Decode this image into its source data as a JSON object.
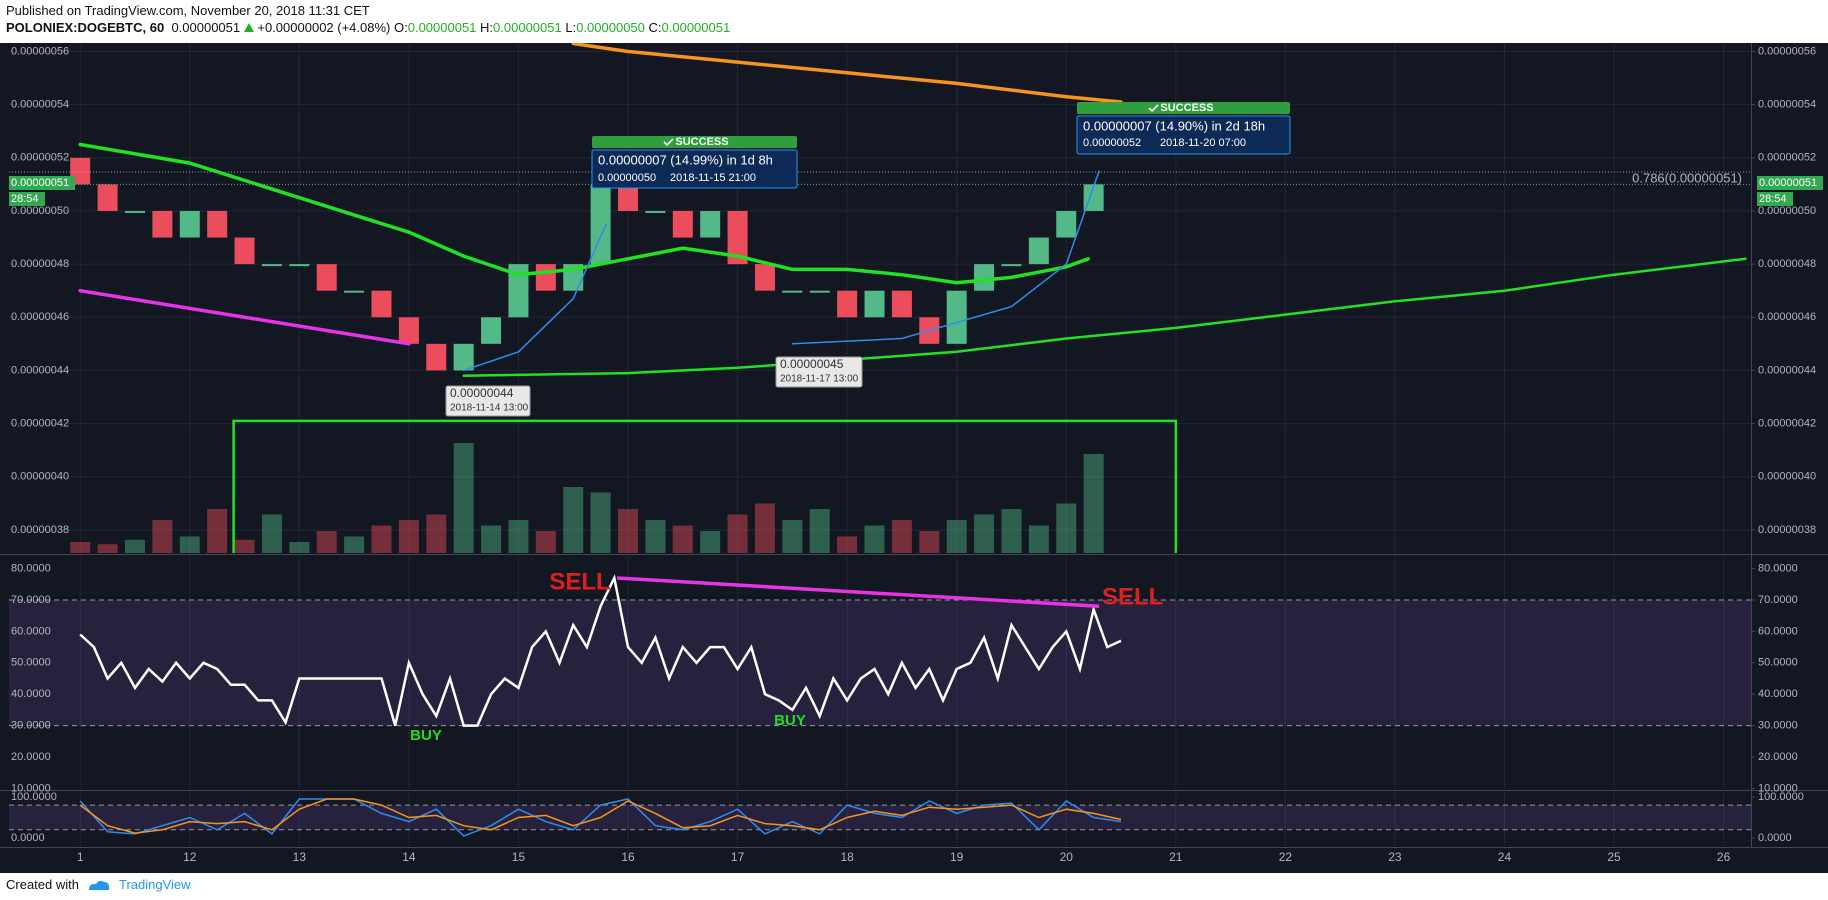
{
  "header": {
    "published": "Published on TradingView.com, November 20, 2018 11:31 CET",
    "symbol": "POLONIEX:DOGEBTC, 60",
    "last": "0.00000051",
    "change": "+0.00000002 (+4.08%)",
    "o_label": "O:",
    "o": "0.00000051",
    "h_label": "H:",
    "h": "0.00000051",
    "l_label": "L:",
    "l": "0.00000050",
    "c_label": "C:",
    "c": "0.00000051"
  },
  "footer": {
    "created": "Created with",
    "brand": "TradingView"
  },
  "chart_data": [
    {
      "type": "candlestick",
      "x": [
        11,
        11.25,
        11.5,
        11.75,
        12,
        12.25,
        12.5,
        12.75,
        13,
        13.25,
        13.5,
        13.75,
        14,
        14.25,
        14.5,
        14.75,
        15,
        15.25,
        15.5,
        15.75,
        16,
        16.25,
        16.5,
        16.75,
        17,
        17.25,
        17.5,
        17.75,
        18,
        18.25,
        18.5,
        18.75,
        19,
        19.25,
        19.5,
        19.75,
        20,
        20.25
      ],
      "open": [
        5.2e-07,
        5.1e-07,
        5e-07,
        5e-07,
        4.9e-07,
        5e-07,
        4.9e-07,
        4.8e-07,
        4.8e-07,
        4.8e-07,
        4.7e-07,
        4.7e-07,
        4.6e-07,
        4.5e-07,
        4.4e-07,
        4.5e-07,
        4.6e-07,
        4.8e-07,
        4.7e-07,
        4.8e-07,
        5.1e-07,
        5e-07,
        5e-07,
        4.9e-07,
        5e-07,
        4.8e-07,
        4.7e-07,
        4.7e-07,
        4.7e-07,
        4.6e-07,
        4.7e-07,
        4.6e-07,
        4.5e-07,
        4.7e-07,
        4.8e-07,
        4.8e-07,
        4.9e-07,
        5e-07
      ],
      "close": [
        5.1e-07,
        5e-07,
        5e-07,
        4.9e-07,
        5e-07,
        4.9e-07,
        4.8e-07,
        4.8e-07,
        4.8e-07,
        4.7e-07,
        4.7e-07,
        4.6e-07,
        4.5e-07,
        4.4e-07,
        4.5e-07,
        4.6e-07,
        4.8e-07,
        4.7e-07,
        4.8e-07,
        5.1e-07,
        5e-07,
        5e-07,
        4.9e-07,
        5e-07,
        4.8e-07,
        4.7e-07,
        4.7e-07,
        4.7e-07,
        4.6e-07,
        4.7e-07,
        4.6e-07,
        4.5e-07,
        4.7e-07,
        4.8e-07,
        4.8e-07,
        4.9e-07,
        5e-07,
        5.1e-07
      ],
      "volume": [
        10,
        8,
        12,
        30,
        15,
        40,
        12,
        35,
        10,
        20,
        15,
        25,
        30,
        35,
        100,
        25,
        30,
        20,
        60,
        55,
        40,
        30,
        25,
        20,
        35,
        45,
        30,
        40,
        15,
        25,
        30,
        20,
        30,
        35,
        40,
        25,
        45,
        90
      ],
      "up_color": "#53b987",
      "down_color": "#eb4d5c",
      "lines": [
        {
          "color": "#22e022",
          "width": 3.5,
          "x": [
            11,
            12,
            13,
            14,
            14.5,
            15,
            15.5,
            16,
            16.5,
            17,
            17.5,
            18,
            18.5,
            19,
            19.5,
            20,
            20.2
          ],
          "values": [
            5.25e-07,
            5.18e-07,
            5.05e-07,
            4.92e-07,
            4.83e-07,
            4.76e-07,
            4.78e-07,
            4.82e-07,
            4.86e-07,
            4.83e-07,
            4.78e-07,
            4.78e-07,
            4.76e-07,
            4.73e-07,
            4.75e-07,
            4.79e-07,
            4.82e-07
          ]
        },
        {
          "color": "#f7941d",
          "width": 3.5,
          "x": [
            15.5,
            16,
            17,
            18,
            19,
            20,
            20.5
          ],
          "values": [
            5.63e-07,
            5.6e-07,
            5.56e-07,
            5.52e-07,
            5.48e-07,
            5.43e-07,
            5.41e-07
          ]
        },
        {
          "color": "#e633e6",
          "width": 3.5,
          "x": [
            11,
            14
          ],
          "values": [
            4.7e-07,
            4.5e-07
          ]
        },
        {
          "color": "#22e022",
          "width": 2.5,
          "x": [
            14.5,
            16,
            17,
            18,
            19,
            20,
            21,
            22,
            23,
            24,
            25,
            26.2
          ],
          "values": [
            4.38e-07,
            4.39e-07,
            4.41e-07,
            4.44e-07,
            4.47e-07,
            4.52e-07,
            4.56e-07,
            4.61e-07,
            4.66e-07,
            4.7e-07,
            4.76e-07,
            4.82e-07
          ]
        },
        {
          "color": "#2f8cf0",
          "width": 1.5,
          "x": [
            14.5,
            15,
            15.5,
            15.8
          ],
          "values": [
            4.4e-07,
            4.47e-07,
            4.67e-07,
            4.95e-07
          ]
        },
        {
          "color": "#2f8cf0",
          "width": 1.5,
          "x": [
            17.5,
            18.5,
            19.5,
            20,
            20.3
          ],
          "values": [
            4.5e-07,
            4.52e-07,
            4.64e-07,
            4.8e-07,
            5.15e-07
          ]
        }
      ],
      "box": {
        "x": [
          12.4,
          21
        ],
        "top": 4.21e-07,
        "color": "#22e022"
      },
      "annotations": [
        "SUCCESS",
        "0.00000007 (14.99%) in 1d 8h",
        "0.00000050",
        "2018-11-15  21:00",
        "SUCCESS",
        "0.00000007 (14.90%) in 2d 18h",
        "0.00000052",
        "2018-11-20  07:00",
        "0.00000044",
        "2018-11-14 13:00",
        "0.00000045",
        "2018-11-17 13:00",
        "0.786(0.00000051)"
      ],
      "last_price": "0.00000051",
      "countdown": "28:54",
      "xlim": [
        10.35,
        26.25
      ],
      "xticks": [
        {
          "value": 11,
          "label": "1"
        },
        12,
        13,
        14,
        15,
        16,
        17,
        18,
        19,
        20,
        21,
        22,
        23,
        24,
        25,
        26
      ],
      "ylim": [
        3.713e-07,
        5.632e-07
      ],
      "yticks": [
        {
          "value": 3.8e-07,
          "label": "0.00000038"
        },
        {
          "value": 4e-07,
          "label": "0.00000040"
        },
        {
          "value": 4.2e-07,
          "label": "0.00000042"
        },
        {
          "value": 4.4e-07,
          "label": "0.00000044"
        },
        {
          "value": 4.6e-07,
          "label": "0.00000046"
        },
        {
          "value": 4.8e-07,
          "label": "0.00000048"
        },
        {
          "value": 5e-07,
          "label": "0.00000050"
        },
        {
          "value": 5.2e-07,
          "label": "0.00000052"
        },
        {
          "value": 5.4e-07,
          "label": "0.00000054"
        },
        {
          "value": 5.6e-07,
          "label": "0.00000056"
        }
      ],
      "grid": true
    },
    {
      "type": "line",
      "x": [
        11,
        11.125,
        11.25,
        11.375,
        11.5,
        11.625,
        11.75,
        11.875,
        12,
        12.125,
        12.25,
        12.375,
        12.5,
        12.625,
        12.75,
        12.875,
        13,
        13.125,
        13.25,
        13.375,
        13.5,
        13.625,
        13.75,
        13.875,
        14,
        14.125,
        14.25,
        14.375,
        14.5,
        14.625,
        14.75,
        14.875,
        15,
        15.125,
        15.25,
        15.375,
        15.5,
        15.625,
        15.75,
        15.875,
        16,
        16.125,
        16.25,
        16.375,
        16.5,
        16.625,
        16.75,
        16.875,
        17,
        17.125,
        17.25,
        17.375,
        17.5,
        17.625,
        17.75,
        17.875,
        18,
        18.125,
        18.25,
        18.375,
        18.5,
        18.625,
        18.75,
        18.875,
        19,
        19.125,
        19.25,
        19.375,
        19.5,
        19.625,
        19.75,
        19.875,
        20,
        20.125,
        20.25,
        20.375,
        20.5
      ],
      "series": [
        {
          "color": "#ffffff",
          "values": [
            59,
            55,
            45,
            50,
            42,
            48,
            44,
            50,
            45,
            50,
            48,
            43,
            43,
            38,
            38,
            31,
            45,
            45,
            45,
            45,
            45,
            45,
            45,
            30,
            50,
            40,
            33,
            45,
            30,
            30,
            40,
            45,
            42,
            55,
            60,
            50,
            62,
            55,
            68,
            77,
            55,
            50,
            58,
            45,
            55,
            50,
            55,
            55,
            48,
            55,
            40,
            38,
            35,
            42,
            33,
            45,
            38,
            45,
            48,
            40,
            50,
            42,
            48,
            38,
            48,
            50,
            58,
            45,
            62,
            55,
            48,
            55,
            60,
            48,
            67,
            55,
            57
          ]
        }
      ],
      "band": [
        30,
        70
      ],
      "trend": {
        "color": "#e633e6",
        "x": [
          15.9,
          20.3
        ],
        "values": [
          77,
          68
        ]
      },
      "annotations": [
        "SELL",
        "SELL",
        "BUY",
        "BUY"
      ],
      "xlim": [
        10.35,
        26.25
      ],
      "ylim": [
        9.8,
        84
      ],
      "yticks": [
        {
          "value": 10,
          "label": "10.0000"
        },
        {
          "value": 20,
          "label": "20.0000"
        },
        {
          "value": 30,
          "label": "30.0000"
        },
        {
          "value": 40,
          "label": "40.0000"
        },
        {
          "value": 50,
          "label": "50.0000"
        },
        {
          "value": 60,
          "label": "60.0000"
        },
        {
          "value": 70,
          "label": "70.0000"
        },
        {
          "value": 80,
          "label": "80.0000"
        }
      ]
    },
    {
      "type": "line",
      "x": [
        11,
        11.25,
        11.5,
        11.75,
        12,
        12.25,
        12.5,
        12.75,
        13,
        13.25,
        13.5,
        13.75,
        14,
        14.25,
        14.5,
        14.75,
        15,
        15.25,
        15.5,
        15.75,
        16,
        16.25,
        16.5,
        16.75,
        17,
        17.25,
        17.5,
        17.75,
        18,
        18.25,
        18.5,
        18.75,
        19,
        19.25,
        19.5,
        19.75,
        20,
        20.25,
        20.5
      ],
      "series": [
        {
          "color": "#2f8cf0",
          "values": [
            90,
            15,
            10,
            30,
            50,
            20,
            60,
            10,
            95,
            95,
            95,
            60,
            40,
            70,
            5,
            30,
            70,
            40,
            20,
            80,
            95,
            30,
            20,
            40,
            70,
            10,
            40,
            10,
            80,
            60,
            50,
            90,
            60,
            80,
            85,
            20,
            90,
            50,
            40
          ]
        },
        {
          "color": "#f7941d",
          "values": [
            80,
            30,
            12,
            20,
            40,
            35,
            40,
            20,
            70,
            95,
            95,
            80,
            50,
            55,
            30,
            20,
            50,
            55,
            30,
            50,
            90,
            60,
            25,
            30,
            55,
            35,
            30,
            20,
            50,
            65,
            55,
            75,
            70,
            75,
            80,
            50,
            70,
            60,
            45
          ]
        }
      ],
      "band": [
        20,
        80
      ],
      "xlim": [
        10.35,
        26.25
      ],
      "ylim": [
        -19.5,
        112
      ],
      "yticks": [
        {
          "value": 0,
          "label": "0.0000"
        },
        {
          "value": 100,
          "label": "100.0000"
        }
      ]
    }
  ]
}
